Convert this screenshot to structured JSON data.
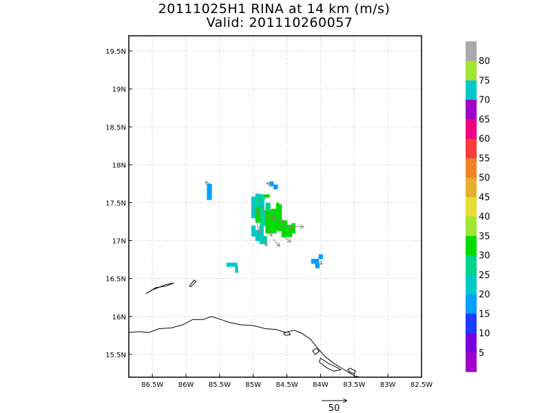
{
  "title": {
    "line1": "20111025H1 RINA at 14 km (m/s)",
    "line2": "Valid: 201110260057"
  },
  "chart_data": {
    "type": "heatmap",
    "units": "m/s",
    "lon_range": [
      -86.85,
      -82.5
    ],
    "lat_range": [
      15.2,
      19.7
    ],
    "x_ticks": [
      {
        "value": -86.5,
        "label": "86.5W"
      },
      {
        "value": -86.0,
        "label": "86W"
      },
      {
        "value": -85.5,
        "label": "85.5W"
      },
      {
        "value": -85.0,
        "label": "85W"
      },
      {
        "value": -84.5,
        "label": "84.5W"
      },
      {
        "value": -84.0,
        "label": "84W"
      },
      {
        "value": -83.5,
        "label": "83.5W"
      },
      {
        "value": -83.0,
        "label": "83W"
      },
      {
        "value": -82.5,
        "label": "82.5W"
      }
    ],
    "y_ticks": [
      {
        "value": 15.5,
        "label": "15.5N"
      },
      {
        "value": 16.0,
        "label": "16N"
      },
      {
        "value": 16.5,
        "label": "16.5N"
      },
      {
        "value": 17.0,
        "label": "17N"
      },
      {
        "value": 17.5,
        "label": "17.5N"
      },
      {
        "value": 18.0,
        "label": "18N"
      },
      {
        "value": 18.5,
        "label": "18.5N"
      },
      {
        "value": 19.0,
        "label": "19N"
      },
      {
        "value": 19.5,
        "label": "19.5N"
      }
    ],
    "grid": true,
    "colorbar": {
      "levels": [
        {
          "color": "#a000c8",
          "label": "5"
        },
        {
          "color": "#7800dc",
          "label": "10"
        },
        {
          "color": "#1e3cff",
          "label": "15"
        },
        {
          "color": "#00a0ff",
          "label": "20"
        },
        {
          "color": "#00c8c8",
          "label": "25"
        },
        {
          "color": "#00d28c",
          "label": "30"
        },
        {
          "color": "#00dc00",
          "label": "35"
        },
        {
          "color": "#a0e632",
          "label": "40"
        },
        {
          "color": "#e6dc32",
          "label": "45"
        },
        {
          "color": "#e6af2d",
          "label": "50"
        },
        {
          "color": "#f08228",
          "label": "55"
        },
        {
          "color": "#fa3c3c",
          "label": "60"
        },
        {
          "color": "#f00082",
          "label": "65"
        },
        {
          "color": "#a000c8",
          "label": "70"
        },
        {
          "color": "#00c8c8",
          "label": "75"
        },
        {
          "color": "#a0e632",
          "label": "80"
        },
        {
          "color": "#aaaaaa",
          "label": ""
        }
      ]
    },
    "wind_cells": [
      {
        "lon": -85.69,
        "lat": 17.68,
        "w": 0.07,
        "h": 0.07,
        "value": 15
      },
      {
        "lon": -85.69,
        "lat": 17.61,
        "w": 0.07,
        "h": 0.07,
        "value": 15
      },
      {
        "lon": -85.69,
        "lat": 17.54,
        "w": 0.07,
        "h": 0.07,
        "value": 15
      },
      {
        "lon": -84.76,
        "lat": 17.72,
        "w": 0.06,
        "h": 0.06,
        "value": 15
      },
      {
        "lon": -84.7,
        "lat": 17.68,
        "w": 0.06,
        "h": 0.06,
        "value": 15
      },
      {
        "lon": -85.03,
        "lat": 17.52,
        "w": 0.06,
        "h": 0.06,
        "value": 20
      },
      {
        "lon": -84.97,
        "lat": 17.56,
        "w": 0.07,
        "h": 0.06,
        "value": 20
      },
      {
        "lon": -84.9,
        "lat": 17.55,
        "w": 0.07,
        "h": 0.06,
        "value": 25
      },
      {
        "lon": -84.83,
        "lat": 17.57,
        "w": 0.07,
        "h": 0.04,
        "value": 30
      },
      {
        "lon": -85.03,
        "lat": 17.44,
        "w": 0.06,
        "h": 0.08,
        "value": 20
      },
      {
        "lon": -84.97,
        "lat": 17.44,
        "w": 0.07,
        "h": 0.12,
        "value": 25
      },
      {
        "lon": -84.9,
        "lat": 17.4,
        "w": 0.06,
        "h": 0.15,
        "value": 20
      },
      {
        "lon": -84.82,
        "lat": 17.4,
        "w": 0.07,
        "h": 0.1,
        "value": 25
      },
      {
        "lon": -85.03,
        "lat": 17.3,
        "w": 0.06,
        "h": 0.14,
        "value": 20
      },
      {
        "lon": -84.97,
        "lat": 17.24,
        "w": 0.07,
        "h": 0.2,
        "value": 30
      },
      {
        "lon": -84.9,
        "lat": 17.2,
        "w": 0.08,
        "h": 0.2,
        "value": 25
      },
      {
        "lon": -84.82,
        "lat": 17.1,
        "w": 0.08,
        "h": 0.3,
        "value": 30
      },
      {
        "lon": -84.74,
        "lat": 17.1,
        "w": 0.08,
        "h": 0.32,
        "value": 30
      },
      {
        "lon": -84.66,
        "lat": 17.13,
        "w": 0.08,
        "h": 0.35,
        "value": 30
      },
      {
        "lon": -84.58,
        "lat": 17.05,
        "w": 0.08,
        "h": 0.22,
        "value": 30
      },
      {
        "lon": -84.5,
        "lat": 17.05,
        "w": 0.07,
        "h": 0.16,
        "value": 30
      },
      {
        "lon": -84.43,
        "lat": 17.1,
        "w": 0.05,
        "h": 0.13,
        "value": 30
      },
      {
        "lon": -84.66,
        "lat": 17.42,
        "w": 0.04,
        "h": 0.08,
        "value": 30
      },
      {
        "lon": -85.03,
        "lat": 17.06,
        "w": 0.06,
        "h": 0.14,
        "value": 20
      },
      {
        "lon": -84.97,
        "lat": 17.0,
        "w": 0.06,
        "h": 0.14,
        "value": 20
      },
      {
        "lon": -84.91,
        "lat": 16.96,
        "w": 0.06,
        "h": 0.12,
        "value": 20
      },
      {
        "lon": -84.85,
        "lat": 16.96,
        "w": 0.05,
        "h": 0.1,
        "value": 25
      },
      {
        "lon": -84.91,
        "lat": 17.08,
        "w": 0.06,
        "h": 0.12,
        "value": 20
      },
      {
        "lon": -85.4,
        "lat": 16.66,
        "w": 0.16,
        "h": 0.05,
        "value": 20
      },
      {
        "lon": -85.27,
        "lat": 16.58,
        "w": 0.04,
        "h": 0.08,
        "value": 20
      },
      {
        "lon": -84.03,
        "lat": 16.76,
        "w": 0.06,
        "h": 0.06,
        "value": 15
      },
      {
        "lon": -84.14,
        "lat": 16.7,
        "w": 0.11,
        "h": 0.06,
        "value": 15
      },
      {
        "lon": -84.08,
        "lat": 16.64,
        "w": 0.06,
        "h": 0.06,
        "value": 15
      }
    ],
    "wind_vectors": [
      {
        "lon": -85.68,
        "lat": 17.74,
        "u": -3,
        "v": 6
      },
      {
        "lon": -84.71,
        "lat": 17.74,
        "u": -12,
        "v": 3
      },
      {
        "lon": -84.97,
        "lat": 17.47,
        "u": 4,
        "v": -18
      },
      {
        "lon": -84.85,
        "lat": 17.45,
        "u": 6,
        "v": -22
      },
      {
        "lon": -84.75,
        "lat": 17.4,
        "u": 8,
        "v": -20
      },
      {
        "lon": -84.65,
        "lat": 17.35,
        "u": 12,
        "v": -18
      },
      {
        "lon": -84.95,
        "lat": 17.25,
        "u": 6,
        "v": -24
      },
      {
        "lon": -84.8,
        "lat": 17.22,
        "u": 10,
        "v": -24
      },
      {
        "lon": -84.62,
        "lat": 17.2,
        "u": 26,
        "v": -6
      },
      {
        "lon": -84.48,
        "lat": 17.2,
        "u": 30,
        "v": -3
      },
      {
        "lon": -84.85,
        "lat": 17.05,
        "u": 6,
        "v": -18
      },
      {
        "lon": -84.7,
        "lat": 17.02,
        "u": 12,
        "v": -14
      },
      {
        "lon": -84.55,
        "lat": 17.05,
        "u": 14,
        "v": -10
      },
      {
        "lon": -84.05,
        "lat": 16.72,
        "u": 10,
        "v": -4
      }
    ],
    "reference_vector": {
      "value": "50"
    },
    "coastlines": [
      [
        [
          -86.85,
          15.79
        ],
        [
          -86.7,
          15.8
        ],
        [
          -86.55,
          15.79
        ],
        [
          -86.4,
          15.84
        ],
        [
          -86.22,
          15.85
        ],
        [
          -86.05,
          15.89
        ],
        [
          -85.9,
          15.96
        ],
        [
          -85.75,
          15.96
        ],
        [
          -85.62,
          16.0
        ],
        [
          -85.48,
          15.96
        ],
        [
          -85.35,
          15.92
        ],
        [
          -85.18,
          15.89
        ],
        [
          -85.0,
          15.88
        ],
        [
          -84.82,
          15.84
        ],
        [
          -84.66,
          15.83
        ],
        [
          -84.52,
          15.79
        ],
        [
          -84.4,
          15.82
        ],
        [
          -84.28,
          15.78
        ],
        [
          -84.15,
          15.7
        ],
        [
          -84.04,
          15.58
        ],
        [
          -83.93,
          15.47
        ],
        [
          -83.8,
          15.38
        ],
        [
          -83.65,
          15.3
        ],
        [
          -83.5,
          15.22
        ],
        [
          -83.42,
          15.2
        ]
      ],
      [
        [
          -86.6,
          16.3
        ],
        [
          -86.45,
          16.38
        ],
        [
          -86.3,
          16.4
        ],
        [
          -86.18,
          16.44
        ],
        [
          -86.3,
          16.42
        ],
        [
          -86.5,
          16.35
        ],
        [
          -86.6,
          16.3
        ]
      ],
      [
        [
          -85.95,
          16.4
        ],
        [
          -85.88,
          16.48
        ],
        [
          -85.85,
          16.46
        ],
        [
          -85.93,
          16.39
        ],
        [
          -85.95,
          16.4
        ]
      ],
      [
        [
          -84.0,
          15.45
        ],
        [
          -83.88,
          15.38
        ],
        [
          -83.76,
          15.33
        ],
        [
          -83.7,
          15.3
        ],
        [
          -83.8,
          15.28
        ],
        [
          -83.9,
          15.32
        ],
        [
          -84.02,
          15.4
        ],
        [
          -84.0,
          15.45
        ]
      ],
      [
        [
          -84.12,
          15.55
        ],
        [
          -84.06,
          15.58
        ],
        [
          -84.02,
          15.54
        ],
        [
          -84.08,
          15.5
        ],
        [
          -84.12,
          15.55
        ]
      ],
      [
        [
          -84.55,
          15.78
        ],
        [
          -84.48,
          15.8
        ],
        [
          -84.45,
          15.76
        ],
        [
          -84.52,
          15.75
        ],
        [
          -84.55,
          15.78
        ]
      ],
      [
        [
          -83.6,
          15.3
        ],
        [
          -83.55,
          15.26
        ],
        [
          -83.5,
          15.25
        ],
        [
          -83.48,
          15.28
        ],
        [
          -83.56,
          15.32
        ],
        [
          -83.6,
          15.3
        ]
      ]
    ]
  }
}
